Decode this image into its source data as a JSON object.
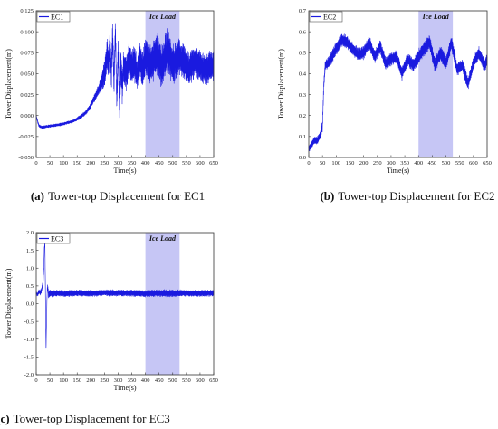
{
  "chart_data": [
    {
      "type": "line",
      "panel": "a",
      "caption_label": "(a)",
      "caption_text": "Tower-top Displacement for EC1",
      "xlabel": "Time(s)",
      "ylabel": "Tower Displacement(m)",
      "xlim": [
        0,
        650
      ],
      "ylim": [
        -0.05,
        0.125
      ],
      "xticks": [
        "0",
        "50",
        "100",
        "150",
        "200",
        "250",
        "300",
        "350",
        "400",
        "450",
        "500",
        "550",
        "600",
        "650"
      ],
      "yticks": [
        "-0.050",
        "-0.025",
        "0.000",
        "0.025",
        "0.050",
        "0.075",
        "0.100",
        "0.125"
      ],
      "shade": {
        "label": "Ice Load",
        "x0": 400,
        "x1": 525,
        "color": "#c6c6f5"
      },
      "series": [
        {
          "name": "EC1",
          "color": "#1a1adf",
          "x": [
            0,
            5,
            10,
            20,
            40,
            60,
            80,
            100,
            120,
            140,
            160,
            180,
            200,
            210,
            220,
            230,
            240,
            250,
            255,
            260,
            265,
            270,
            275,
            280,
            285,
            290,
            295,
            300,
            305,
            310,
            315,
            320,
            330,
            340,
            350,
            360,
            370,
            380,
            390,
            400,
            420,
            440,
            460,
            480,
            500,
            520,
            540,
            560,
            580,
            600,
            620,
            640,
            650
          ],
          "y": [
            0.0,
            -0.007,
            -0.012,
            -0.014,
            -0.013,
            -0.012,
            -0.011,
            -0.01,
            -0.008,
            -0.006,
            -0.002,
            0.003,
            0.012,
            0.019,
            0.025,
            0.032,
            0.04,
            0.05,
            0.062,
            0.075,
            0.06,
            0.09,
            0.045,
            0.098,
            0.035,
            0.107,
            0.015,
            0.08,
            0.01,
            0.062,
            0.035,
            0.058,
            0.05,
            0.07,
            0.055,
            0.063,
            0.05,
            0.068,
            0.052,
            0.07,
            0.06,
            0.075,
            0.058,
            0.078,
            0.06,
            0.07,
            0.065,
            0.055,
            0.065,
            0.06,
            0.055,
            0.06,
            0.058
          ],
          "amp": [
            0.001,
            0.002,
            0.002,
            0.002,
            0.002,
            0.002,
            0.002,
            0.002,
            0.002,
            0.002,
            0.003,
            0.003,
            0.004,
            0.005,
            0.006,
            0.008,
            0.012,
            0.018,
            0.02,
            0.02,
            0.02,
            0.02,
            0.02,
            0.02,
            0.02,
            0.02,
            0.02,
            0.02,
            0.02,
            0.022,
            0.022,
            0.022,
            0.022,
            0.022,
            0.024,
            0.024,
            0.022,
            0.024,
            0.024,
            0.026,
            0.026,
            0.028,
            0.028,
            0.028,
            0.026,
            0.024,
            0.022,
            0.022,
            0.02,
            0.02,
            0.02,
            0.02,
            0.02
          ]
        }
      ]
    },
    {
      "type": "line",
      "panel": "b",
      "caption_label": "(b)",
      "caption_text": "Tower-top Displacement for EC2",
      "xlabel": "Time(s)",
      "ylabel": "Tower Displacement(m)",
      "xlim": [
        0,
        650
      ],
      "ylim": [
        0,
        0.7
      ],
      "xticks": [
        "0",
        "50",
        "100",
        "150",
        "200",
        "250",
        "300",
        "350",
        "400",
        "450",
        "500",
        "550",
        "600",
        "650"
      ],
      "yticks": [
        "0.0",
        "0.1",
        "0.2",
        "0.3",
        "0.4",
        "0.5",
        "0.6",
        "0.7"
      ],
      "shade": {
        "label": "Ice Load",
        "x0": 400,
        "x1": 525,
        "color": "#c6c6f5"
      },
      "series": [
        {
          "name": "EC2",
          "color": "#1a1adf",
          "x": [
            0,
            10,
            20,
            30,
            40,
            50,
            55,
            60,
            70,
            80,
            100,
            120,
            140,
            160,
            180,
            200,
            220,
            240,
            260,
            280,
            300,
            320,
            340,
            360,
            380,
            400,
            420,
            440,
            460,
            480,
            500,
            520,
            540,
            560,
            580,
            600,
            620,
            640,
            650
          ],
          "y": [
            0.04,
            0.06,
            0.08,
            0.08,
            0.1,
            0.15,
            0.35,
            0.44,
            0.45,
            0.47,
            0.52,
            0.56,
            0.55,
            0.52,
            0.49,
            0.5,
            0.55,
            0.48,
            0.53,
            0.45,
            0.47,
            0.48,
            0.4,
            0.47,
            0.44,
            0.48,
            0.52,
            0.55,
            0.44,
            0.5,
            0.45,
            0.55,
            0.42,
            0.44,
            0.35,
            0.45,
            0.5,
            0.44,
            0.46
          ],
          "amp": [
            0.015,
            0.02,
            0.02,
            0.02,
            0.02,
            0.03,
            0.03,
            0.03,
            0.03,
            0.035,
            0.035,
            0.035,
            0.035,
            0.035,
            0.035,
            0.035,
            0.035,
            0.035,
            0.035,
            0.035,
            0.035,
            0.035,
            0.035,
            0.035,
            0.035,
            0.04,
            0.04,
            0.04,
            0.04,
            0.04,
            0.04,
            0.04,
            0.035,
            0.035,
            0.035,
            0.035,
            0.035,
            0.035,
            0.035
          ]
        }
      ]
    },
    {
      "type": "line",
      "panel": "c",
      "caption_label": "(c)",
      "caption_text": "Tower-top Displacement for EC3",
      "xlabel": "Time(s)",
      "ylabel": "Tower Displacement(m)",
      "xlim": [
        0,
        650
      ],
      "ylim": [
        -2.0,
        2.0
      ],
      "xticks": [
        "0",
        "50",
        "100",
        "150",
        "200",
        "250",
        "300",
        "350",
        "400",
        "450",
        "500",
        "550",
        "600",
        "650"
      ],
      "yticks": [
        "-2.0",
        "-1.5",
        "-1.0",
        "-0.5",
        "0.0",
        "0.5",
        "1.0",
        "1.5",
        "2.0"
      ],
      "shade": {
        "label": "Ice Load",
        "x0": 400,
        "x1": 525,
        "color": "#c6c6f5"
      },
      "series": [
        {
          "name": "EC3",
          "color": "#1a1adf",
          "x": [
            0,
            5,
            10,
            15,
            20,
            25,
            28,
            30,
            32,
            34,
            36,
            38,
            40,
            42,
            45,
            50,
            60,
            80,
            100,
            150,
            200,
            250,
            300,
            350,
            400,
            450,
            500,
            550,
            600,
            650
          ],
          "y": [
            0.3,
            0.25,
            0.35,
            0.3,
            0.4,
            0.6,
            1.0,
            1.6,
            1.7,
            0.2,
            -1.3,
            -0.4,
            0.3,
            0.5,
            0.25,
            0.3,
            0.28,
            0.3,
            0.28,
            0.3,
            0.29,
            0.31,
            0.3,
            0.3,
            0.28,
            0.3,
            0.29,
            0.3,
            0.29,
            0.3
          ],
          "amp": [
            0.05,
            0.06,
            0.07,
            0.08,
            0.08,
            0.08,
            0.05,
            0.05,
            0.05,
            0.05,
            0.05,
            0.05,
            0.1,
            0.12,
            0.12,
            0.1,
            0.1,
            0.1,
            0.1,
            0.1,
            0.1,
            0.1,
            0.1,
            0.1,
            0.1,
            0.11,
            0.11,
            0.1,
            0.1,
            0.1
          ]
        }
      ]
    }
  ]
}
